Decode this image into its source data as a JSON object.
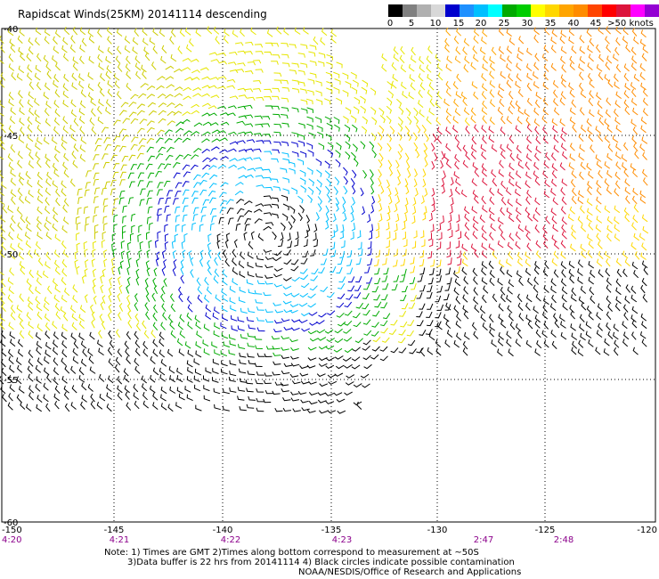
{
  "title": "Rapidscat Winds(25KM) 20141114 descending",
  "legend": {
    "colors": [
      "#000000",
      "#808080",
      "#b0b0b0",
      "#d8d8d8",
      "#0000cd",
      "#1e90ff",
      "#00bfff",
      "#00ffff",
      "#00aa00",
      "#00cd00",
      "#ffff00",
      "#ffd700",
      "#ffa500",
      "#ff8c00",
      "#ff4500",
      "#ff0000",
      "#dc143c",
      "#ff00ff",
      "#9400d3",
      "#4b0082"
    ],
    "labels": [
      "0",
      "5",
      "10",
      "15",
      "20",
      "25",
      "30",
      "35",
      "40",
      "45",
      ">50 knots"
    ]
  },
  "axes": {
    "lon_ticks": [
      "-150",
      "-145",
      "-140",
      "-135",
      "-130",
      "-125",
      "-120"
    ],
    "lat_ticks": [
      "-40",
      "-45",
      "-50",
      "-55",
      "-60"
    ],
    "times": [
      "4:20",
      "4:21",
      "4:22",
      "4:23",
      "2:47",
      "2:48"
    ]
  },
  "notes": {
    "line1": "Note: 1) Times are GMT 2)Times along bottom correspond to measurement at ~50S",
    "line2": "3)Data buffer is 22 hrs from 20141114 4) Black circles indicate possible contamination",
    "line3": "NOAA/NESDIS/Office of Research and Applications"
  }
}
